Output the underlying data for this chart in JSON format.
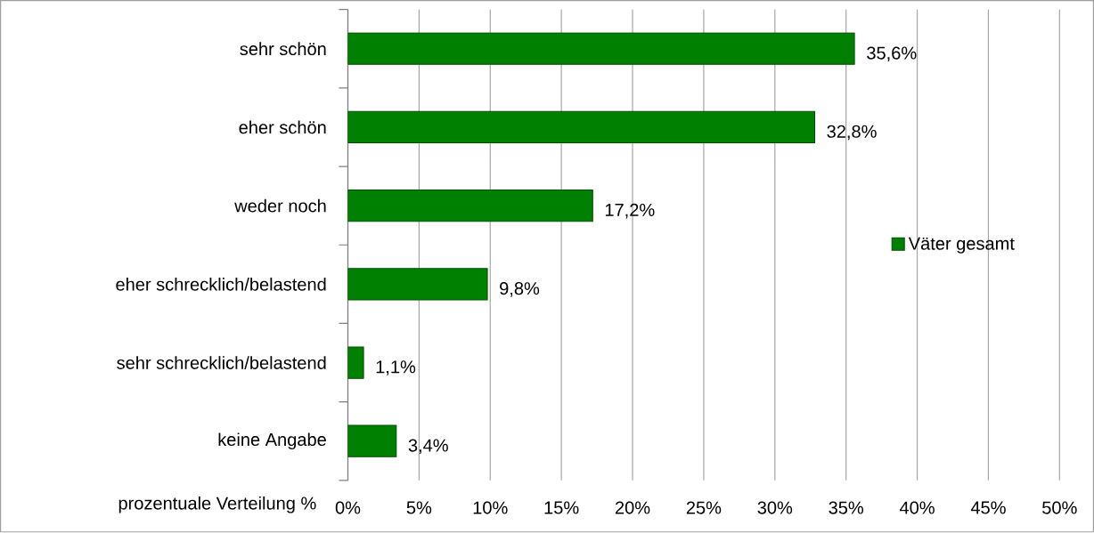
{
  "chart_data": {
    "type": "bar",
    "orientation": "horizontal",
    "xlabel": "prozentuale Verteilung %",
    "categories": [
      "sehr schön",
      "eher schön",
      "weder noch",
      "eher schrecklich/belastend",
      "sehr schrecklich/belastend",
      "keine Angabe"
    ],
    "series": [
      {
        "name": "Väter gesamt",
        "color": "#008000",
        "values": [
          35.6,
          32.8,
          17.2,
          9.8,
          1.1,
          3.4
        ],
        "value_labels": [
          "35,6%",
          "32,8%",
          "17,2%",
          "9,8%",
          "1,1%",
          "3,4%"
        ]
      }
    ],
    "xlim": [
      0,
      50
    ],
    "xticks": [
      {
        "value": 0,
        "label": "0%"
      },
      {
        "value": 5,
        "label": "5%"
      },
      {
        "value": 10,
        "label": "10%"
      },
      {
        "value": 15,
        "label": "15%"
      },
      {
        "value": 20,
        "label": "20%"
      },
      {
        "value": 25,
        "label": "25%"
      },
      {
        "value": 30,
        "label": "30%"
      },
      {
        "value": 35,
        "label": "35%"
      },
      {
        "value": 40,
        "label": "40%"
      },
      {
        "value": 45,
        "label": "45%"
      },
      {
        "value": 50,
        "label": "50%"
      }
    ],
    "grid": "x",
    "legend": "right"
  }
}
